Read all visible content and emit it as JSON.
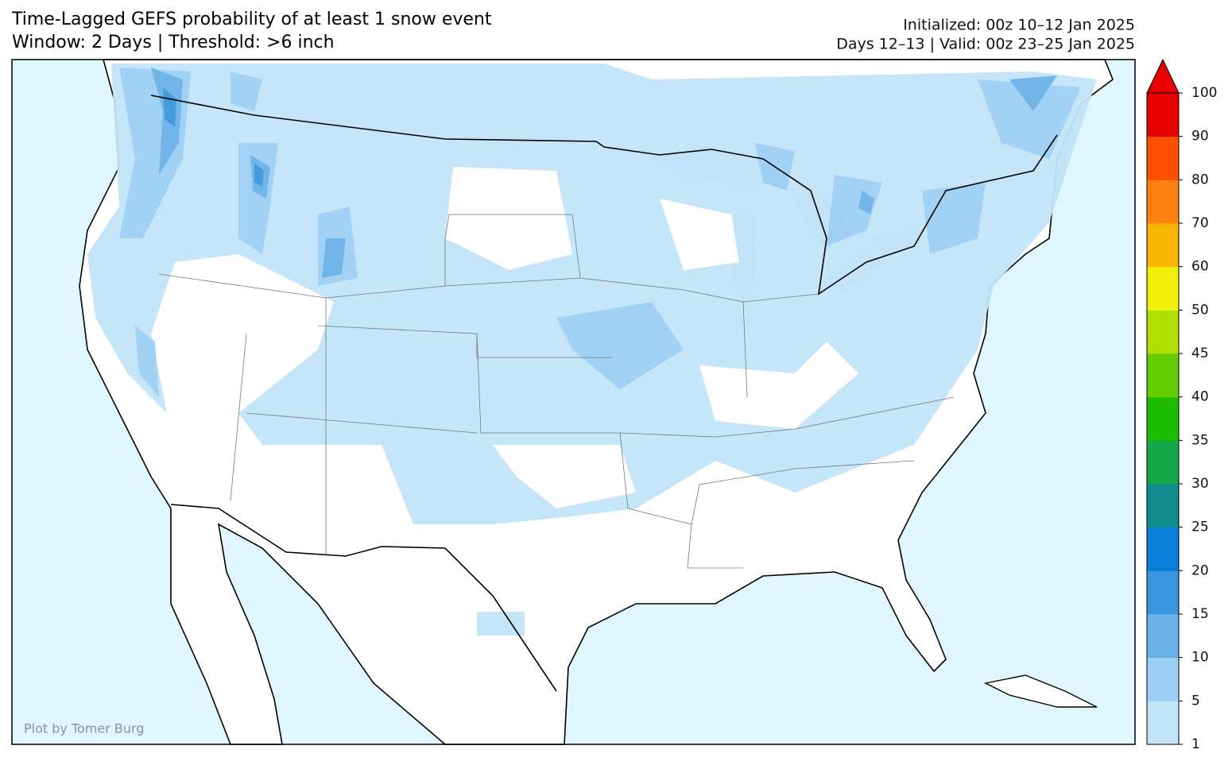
{
  "header": {
    "title_lines": [
      "Time-Lagged GEFS probability of at least 1 snow event",
      "Window: 2 Days | Threshold: >6 inch"
    ],
    "info_lines": [
      "Initialized: 00z 10–12 Jan 2025",
      "Days 12–13 | Valid: 00z 23–25 Jan 2025"
    ]
  },
  "credit": "Plot by Tomer Burg",
  "colorbar": {
    "ticks": [
      1,
      5,
      10,
      15,
      20,
      25,
      30,
      35,
      40,
      45,
      50,
      60,
      70,
      80,
      90,
      100
    ],
    "colors": [
      "#c2e4f8",
      "#9ccff4",
      "#6ab2e8",
      "#3a96dc",
      "#0a7ed6",
      "#108c8c",
      "#14a84b",
      "#1ebc00",
      "#64cc00",
      "#b0e000",
      "#f0f00a",
      "#f7b500",
      "#ff8210",
      "#ff5000",
      "#e60000"
    ]
  }
}
